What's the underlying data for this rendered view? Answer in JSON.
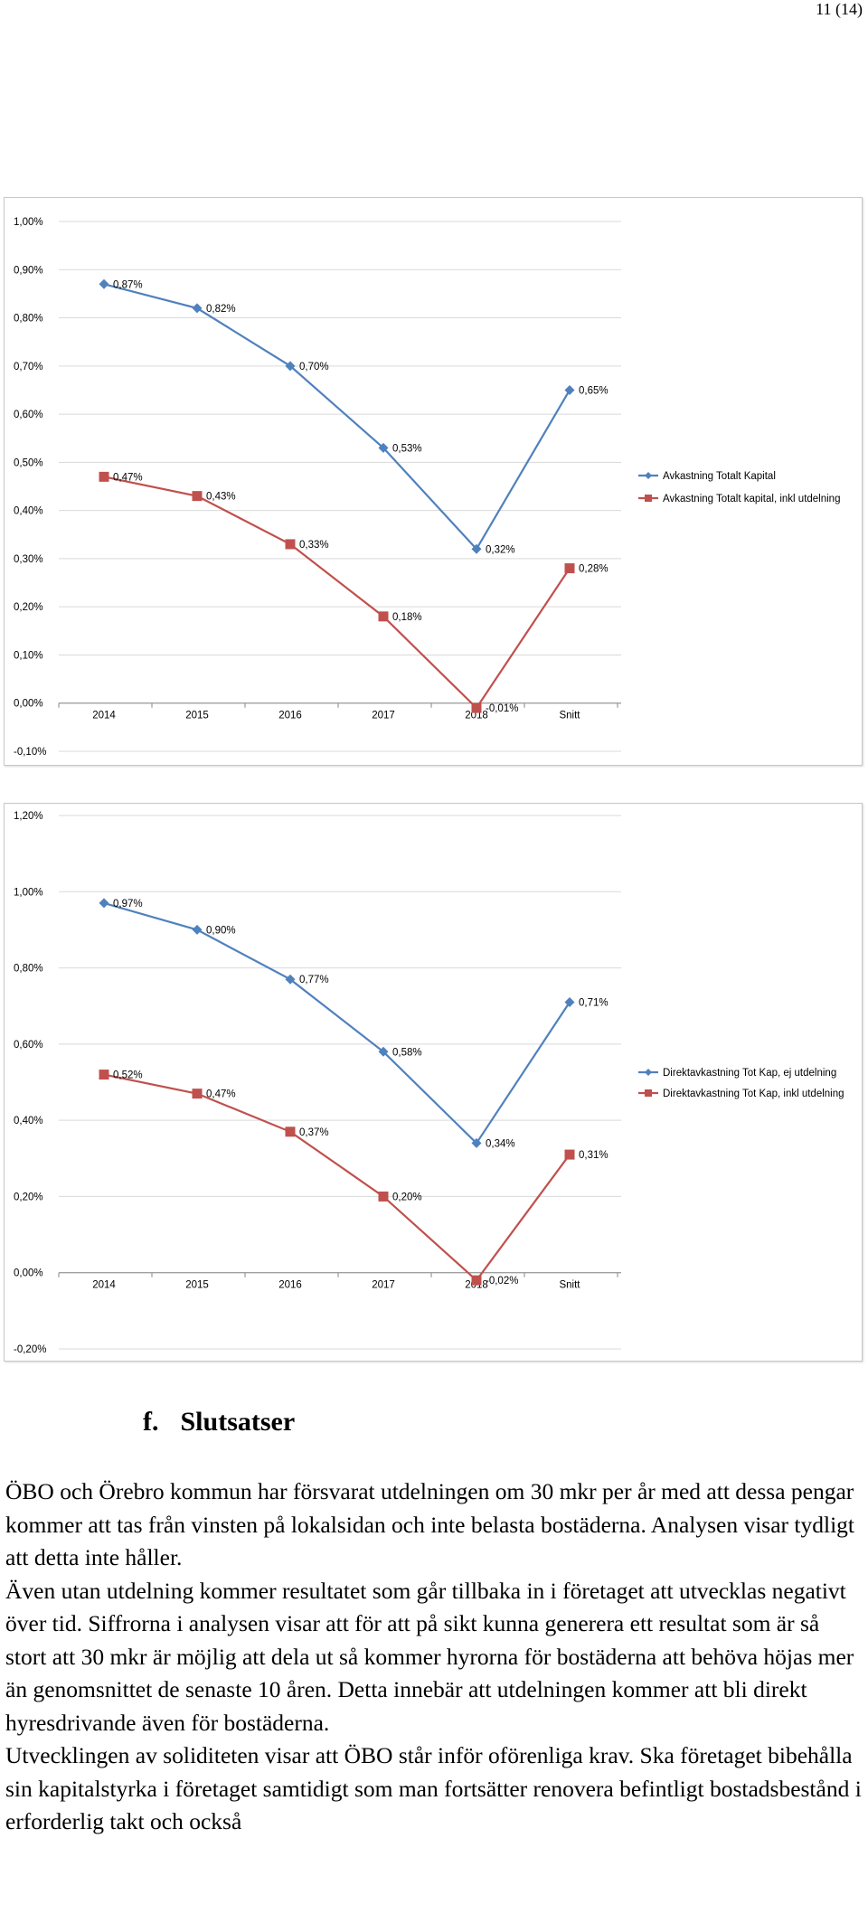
{
  "page": {
    "page_number": "11 (14)"
  },
  "section": {
    "number": "f.",
    "title": "Slutsatser",
    "paragraphs": [
      "ÖBO och Örebro kommun har försvarat utdelningen om 30 mkr per år med att dessa pengar kommer att tas från vinsten på lokalsidan och inte belasta bostäderna. Analysen visar tydligt att detta inte håller.",
      "Även utan utdelning kommer resultatet som går tillbaka in i företaget att utvecklas negativt över tid. Siffrorna i analysen visar att för att på sikt kunna generera ett resultat som är så stort att 30 mkr är möjlig att dela ut så kommer hyrorna för bostäderna att behöva höjas mer än genomsnittet de senaste 10 åren. Detta innebär att utdelningen kommer att bli direkt hyresdrivande även för bostäderna.",
      "Utvecklingen av soliditeten visar att ÖBO står inför oförenliga krav. Ska företaget bibehålla sin kapitalstyrka i företaget samtidigt som man fortsätter renovera befintligt bostadsbestånd i erforderlig takt och också"
    ]
  },
  "colors": {
    "series_blue": "#4f81bd",
    "series_red": "#c0504d",
    "grid": "#d9d9d9"
  },
  "chart_data": [
    {
      "type": "line",
      "categories": [
        "2014",
        "2015",
        "2016",
        "2017",
        "2018",
        "Snitt"
      ],
      "ylim": [
        -0.1,
        1.0
      ],
      "yticks": [
        -0.1,
        0,
        0.1,
        0.2,
        0.3,
        0.4,
        0.5,
        0.6,
        0.7,
        0.8,
        0.9,
        1.0
      ],
      "ytick_labels": [
        "-0,10%",
        "0,00%",
        "0,10%",
        "0,20%",
        "0,30%",
        "0,40%",
        "0,50%",
        "0,60%",
        "0,70%",
        "0,80%",
        "0,90%",
        "1,00%"
      ],
      "grid": true,
      "legend_position": "right",
      "series": [
        {
          "name": "Avkastning Totalt Kapital",
          "values": [
            0.87,
            0.82,
            0.7,
            0.53,
            0.32,
            0.65
          ],
          "labels": [
            "0,87%",
            "0,82%",
            "0,70%",
            "0,53%",
            "0,32%",
            "0,65%"
          ],
          "marker": "diamond",
          "color": "#4f81bd"
        },
        {
          "name": "Avkastning Totalt kapital, inkl utdelning",
          "values": [
            0.47,
            0.43,
            0.33,
            0.18,
            -0.01,
            0.28
          ],
          "labels": [
            "0,47%",
            "0,43%",
            "0,33%",
            "0,18%",
            "-0,01%",
            "0,28%"
          ],
          "marker": "square",
          "color": "#c0504d"
        }
      ]
    },
    {
      "type": "line",
      "categories": [
        "2014",
        "2015",
        "2016",
        "2017",
        "2018",
        "Snitt"
      ],
      "ylim": [
        -0.2,
        1.2
      ],
      "yticks": [
        -0.2,
        0,
        0.2,
        0.4,
        0.6,
        0.8,
        1.0,
        1.2
      ],
      "ytick_labels": [
        "-0,20%",
        "0,00%",
        "0,20%",
        "0,40%",
        "0,60%",
        "0,80%",
        "1,00%",
        "1,20%"
      ],
      "grid": true,
      "legend_position": "right",
      "series": [
        {
          "name": "Direktavkastning Tot Kap, ej utdelning",
          "values": [
            0.97,
            0.9,
            0.77,
            0.58,
            0.34,
            0.71
          ],
          "labels": [
            "0,97%",
            "0,90%",
            "0,77%",
            "0,58%",
            "0,34%",
            "0,71%"
          ],
          "marker": "diamond",
          "color": "#4f81bd"
        },
        {
          "name": "Direktavkastning Tot Kap, inkl utdelning",
          "values": [
            0.52,
            0.47,
            0.37,
            0.2,
            -0.02,
            0.31
          ],
          "labels": [
            "0,52%",
            "0,47%",
            "0,37%",
            "0,20%",
            "-0,02%",
            "0,31%"
          ],
          "marker": "square",
          "color": "#c0504d"
        }
      ]
    }
  ]
}
